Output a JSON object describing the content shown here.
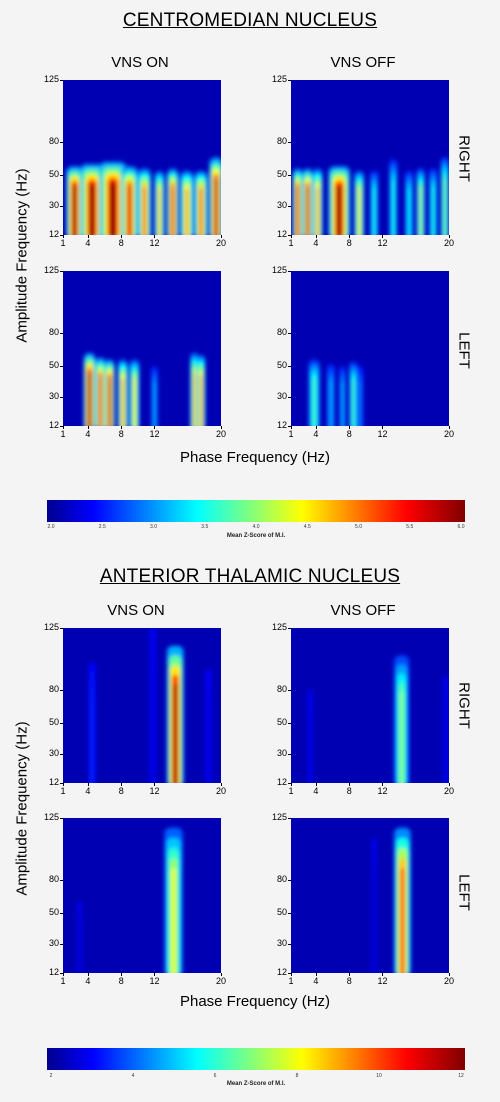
{
  "chart_data": [
    {
      "type": "heatmap",
      "title": "CENTROMEDIAN NUCLEUS",
      "columns": [
        "VNS ON",
        "VNS OFF"
      ],
      "rows": [
        "RIGHT",
        "LEFT"
      ],
      "xlabel": "Phase Frequency (Hz)",
      "ylabel": "Amplitude Frequency (Hz)",
      "x_ticks": [
        1,
        4,
        8,
        12,
        20
      ],
      "y_ticks": [
        12,
        30,
        50,
        80,
        125
      ],
      "xlim": [
        1,
        20
      ],
      "ylim": [
        12,
        125
      ],
      "colorbar": {
        "label": "Mean Z-Score of M.I.",
        "ticks": [
          "2.0",
          "2.5",
          "3.0",
          "3.5",
          "4.0",
          "4.5",
          "5.0",
          "5.5",
          "6.0"
        ],
        "range": [
          2.0,
          6.0
        ],
        "colormap": "jet"
      },
      "panels": [
        {
          "row": "RIGHT",
          "column": "VNS ON",
          "blobs": [
            {
              "x": 2.4,
              "wx": 1.0,
              "top": 58,
              "value": 6.0
            },
            {
              "x": 4.5,
              "wx": 1.4,
              "top": 60,
              "value": 6.0
            },
            {
              "x": 7.0,
              "wx": 1.6,
              "top": 62,
              "value": 6.0
            },
            {
              "x": 9.0,
              "wx": 1.0,
              "top": 58,
              "value": 5.6
            },
            {
              "x": 10.8,
              "wx": 0.8,
              "top": 56,
              "value": 5.2
            },
            {
              "x": 12.6,
              "wx": 0.6,
              "top": 54,
              "value": 4.8
            },
            {
              "x": 14.2,
              "wx": 0.7,
              "top": 56,
              "value": 5.5
            },
            {
              "x": 15.9,
              "wx": 0.8,
              "top": 54,
              "value": 5.0
            },
            {
              "x": 17.6,
              "wx": 0.8,
              "top": 54,
              "value": 5.2
            },
            {
              "x": 19.4,
              "wx": 0.8,
              "top": 66,
              "value": 5.8
            }
          ]
        },
        {
          "row": "RIGHT",
          "column": "VNS OFF",
          "blobs": [
            {
              "x": 1.8,
              "wx": 0.6,
              "top": 56,
              "value": 5.6
            },
            {
              "x": 3.0,
              "wx": 0.6,
              "top": 56,
              "value": 5.8
            },
            {
              "x": 4.2,
              "wx": 0.6,
              "top": 56,
              "value": 5.0
            },
            {
              "x": 6.8,
              "wx": 1.3,
              "top": 58,
              "value": 6.0
            },
            {
              "x": 9.2,
              "wx": 0.6,
              "top": 54,
              "value": 4.6
            },
            {
              "x": 11.0,
              "wx": 0.5,
              "top": 54,
              "value": 3.6
            },
            {
              "x": 13.3,
              "wx": 0.5,
              "top": 64,
              "value": 3.6
            },
            {
              "x": 15.2,
              "wx": 0.5,
              "top": 54,
              "value": 3.5
            },
            {
              "x": 16.6,
              "wx": 0.5,
              "top": 56,
              "value": 4.2
            },
            {
              "x": 18.1,
              "wx": 0.5,
              "top": 56,
              "value": 3.6
            },
            {
              "x": 19.5,
              "wx": 0.5,
              "top": 66,
              "value": 4.0
            }
          ]
        },
        {
          "row": "LEFT",
          "column": "VNS ON",
          "blobs": [
            {
              "x": 4.2,
              "wx": 0.7,
              "top": 62,
              "value": 6.0
            },
            {
              "x": 5.5,
              "wx": 0.6,
              "top": 58,
              "value": 5.6
            },
            {
              "x": 6.6,
              "wx": 0.6,
              "top": 56,
              "value": 5.8
            },
            {
              "x": 8.2,
              "wx": 0.6,
              "top": 56,
              "value": 5.0
            },
            {
              "x": 9.6,
              "wx": 0.6,
              "top": 56,
              "value": 4.6
            },
            {
              "x": 12.0,
              "wx": 0.4,
              "top": 50,
              "value": 3.2
            },
            {
              "x": 16.8,
              "wx": 0.5,
              "top": 62,
              "value": 4.8
            },
            {
              "x": 17.6,
              "wx": 0.5,
              "top": 60,
              "value": 5.0
            }
          ]
        },
        {
          "row": "LEFT",
          "column": "VNS OFF",
          "blobs": [
            {
              "x": 3.8,
              "wx": 0.7,
              "top": 56,
              "value": 3.8
            },
            {
              "x": 5.8,
              "wx": 0.5,
              "top": 52,
              "value": 3.2
            },
            {
              "x": 7.2,
              "wx": 0.4,
              "top": 50,
              "value": 3.2
            },
            {
              "x": 8.5,
              "wx": 0.5,
              "top": 54,
              "value": 3.8
            },
            {
              "x": 9.3,
              "wx": 0.4,
              "top": 50,
              "value": 3.0
            }
          ]
        }
      ]
    },
    {
      "type": "heatmap",
      "title": "ANTERIOR THALAMIC NUCLEUS",
      "columns": [
        "VNS ON",
        "VNS OFF"
      ],
      "rows": [
        "RIGHT",
        "LEFT"
      ],
      "xlabel": "Phase Frequency (Hz)",
      "ylabel": "Amplitude Frequency (Hz)",
      "x_ticks": [
        1,
        4,
        8,
        12,
        20
      ],
      "y_ticks": [
        12,
        30,
        50,
        80,
        125
      ],
      "xlim": [
        1,
        20
      ],
      "ylim": [
        12,
        125
      ],
      "colorbar": {
        "label": "Mean Z-Score of M.I.",
        "ticks": [
          "2",
          "4",
          "6",
          "8",
          "10",
          "12"
        ],
        "range": [
          2,
          12
        ],
        "colormap": "jet"
      },
      "panels": [
        {
          "row": "RIGHT",
          "column": "VNS ON",
          "blobs": [
            {
              "x": 14.5,
              "wx": 1.0,
              "top": 112,
              "value": 12.0
            },
            {
              "x": 4.5,
              "wx": 0.4,
              "top": 100,
              "value": 3.6
            },
            {
              "x": 11.8,
              "wx": 0.4,
              "top": 125,
              "value": 3.0
            },
            {
              "x": 18.5,
              "wx": 0.4,
              "top": 95,
              "value": 3.0
            }
          ]
        },
        {
          "row": "RIGHT",
          "column": "VNS OFF",
          "blobs": [
            {
              "x": 14.3,
              "wx": 0.9,
              "top": 105,
              "value": 7.2
            },
            {
              "x": 3.3,
              "wx": 0.3,
              "top": 80,
              "value": 3.0
            },
            {
              "x": 19.6,
              "wx": 0.3,
              "top": 90,
              "value": 3.0
            }
          ]
        },
        {
          "row": "LEFT",
          "column": "VNS ON",
          "blobs": [
            {
              "x": 14.3,
              "wx": 1.1,
              "top": 118,
              "value": 8.2
            },
            {
              "x": 3.0,
              "wx": 0.3,
              "top": 60,
              "value": 2.8
            }
          ]
        },
        {
          "row": "LEFT",
          "column": "VNS OFF",
          "blobs": [
            {
              "x": 14.4,
              "wx": 1.0,
              "top": 118,
              "value": 10.2
            },
            {
              "x": 11.0,
              "wx": 0.3,
              "top": 110,
              "value": 2.8
            }
          ]
        }
      ]
    }
  ]
}
